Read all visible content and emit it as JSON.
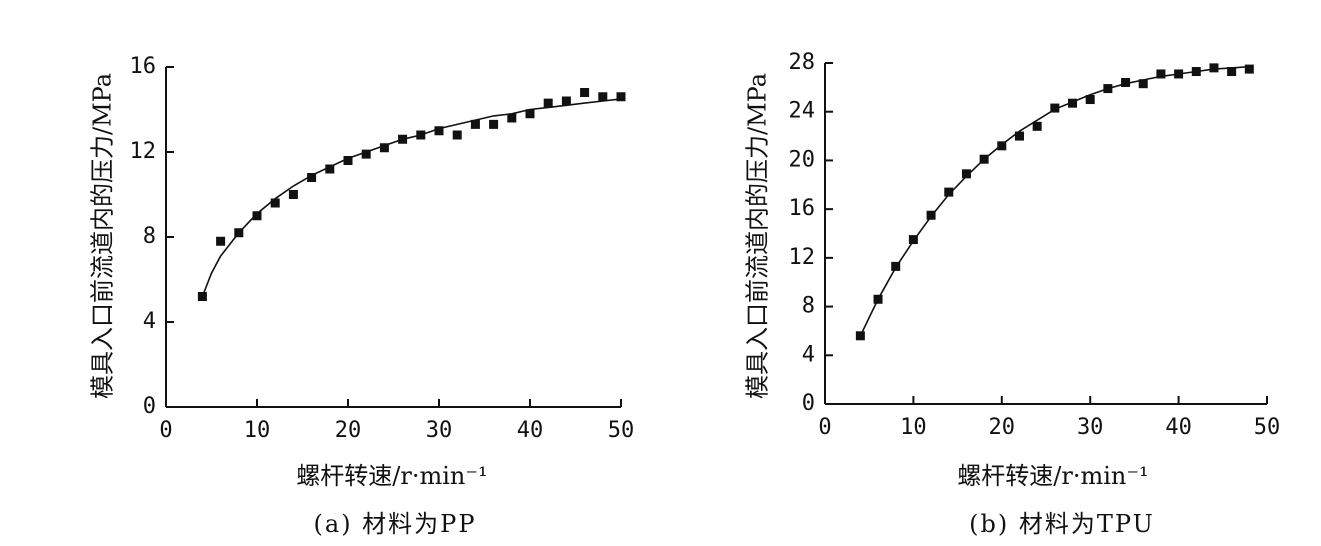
{
  "chart_data": [
    {
      "type": "scatter",
      "caption": "(a) 材料为PP",
      "xlabel": "螺杆转速/r·min⁻¹",
      "ylabel": "模具入口前流道内的压力/MPa",
      "xlim": [
        0,
        50
      ],
      "ylim": [
        0,
        16
      ],
      "xticks": [
        0,
        10,
        20,
        30,
        40,
        50
      ],
      "yticks": [
        0,
        4,
        8,
        12,
        16
      ],
      "grid": false,
      "series": [
        {
          "x": [
            4,
            6,
            8,
            10,
            12,
            14,
            16,
            18,
            20,
            22,
            24,
            26,
            28,
            30,
            32,
            34,
            36,
            38,
            40,
            42,
            44,
            46,
            48,
            50
          ],
          "y": [
            5.2,
            7.8,
            8.2,
            9.0,
            9.6,
            10.0,
            10.8,
            11.2,
            11.6,
            11.9,
            12.2,
            12.6,
            12.8,
            13.0,
            12.8,
            13.3,
            13.3,
            13.6,
            13.8,
            14.3,
            14.4,
            14.8,
            14.6,
            14.6
          ]
        }
      ],
      "fit_curve": {
        "x": [
          4,
          5,
          6,
          8,
          10,
          12,
          14,
          16,
          18,
          20,
          22,
          24,
          26,
          28,
          30,
          32,
          34,
          36,
          38,
          40,
          42,
          44,
          46,
          48,
          50
        ],
        "y": [
          5.2,
          6.3,
          7.1,
          8.2,
          9.1,
          9.8,
          10.4,
          10.9,
          11.3,
          11.7,
          12.0,
          12.3,
          12.6,
          12.8,
          13.1,
          13.3,
          13.5,
          13.7,
          13.8,
          14.0,
          14.1,
          14.2,
          14.3,
          14.4,
          14.5
        ]
      }
    },
    {
      "type": "scatter",
      "caption": "(b) 材料为TPU",
      "xlabel": "螺杆转速/r·min⁻¹",
      "ylabel": "模具入口前流道内的压力/MPa",
      "xlim": [
        0,
        50
      ],
      "ylim": [
        0,
        28
      ],
      "xticks": [
        0,
        10,
        20,
        30,
        40,
        50
      ],
      "yticks": [
        0,
        4,
        8,
        12,
        16,
        20,
        24,
        28
      ],
      "grid": false,
      "series": [
        {
          "x": [
            4,
            6,
            8,
            10,
            12,
            14,
            16,
            18,
            20,
            22,
            24,
            26,
            28,
            30,
            32,
            34,
            36,
            38,
            40,
            42,
            44,
            46,
            48
          ],
          "y": [
            5.6,
            8.6,
            11.3,
            13.5,
            15.5,
            17.4,
            18.9,
            20.1,
            21.2,
            22.0,
            22.8,
            24.3,
            24.7,
            25.0,
            25.9,
            26.4,
            26.3,
            27.1,
            27.1,
            27.3,
            27.6,
            27.3,
            27.5
          ]
        }
      ],
      "fit_curve": {
        "x": [
          4,
          6,
          8,
          10,
          12,
          14,
          16,
          18,
          20,
          22,
          24,
          26,
          28,
          30,
          32,
          34,
          36,
          38,
          40,
          42,
          44,
          46,
          48
        ],
        "y": [
          5.6,
          8.6,
          11.2,
          13.4,
          15.4,
          17.2,
          18.7,
          20.1,
          21.3,
          22.4,
          23.3,
          24.2,
          24.8,
          25.4,
          25.9,
          26.3,
          26.6,
          26.9,
          27.1,
          27.3,
          27.5,
          27.6,
          27.7
        ]
      }
    }
  ]
}
